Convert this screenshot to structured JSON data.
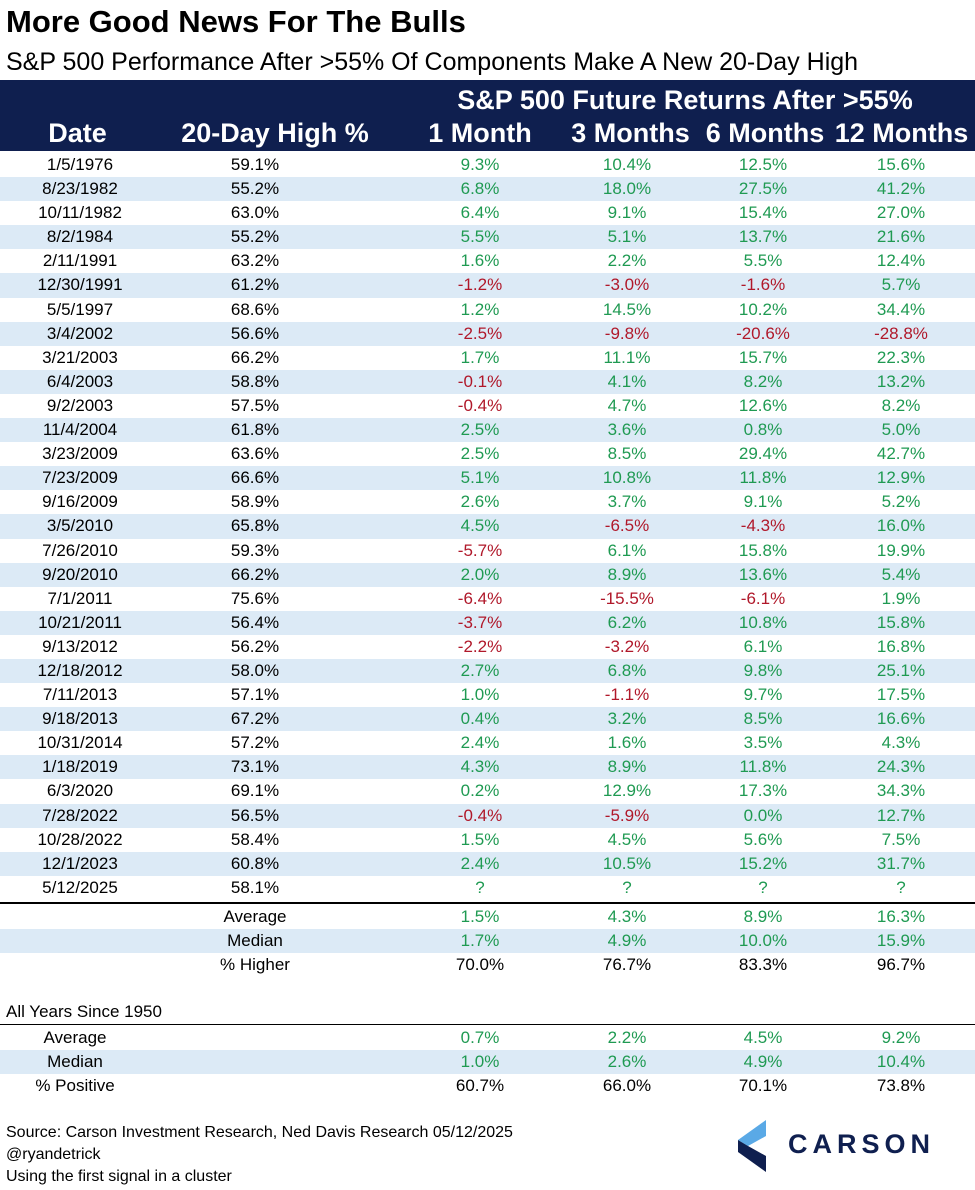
{
  "title": "More Good News For The Bulls",
  "subtitle": "S&P 500 Performance After >55% Of Components Make A New 20-Day High",
  "header": {
    "group_label": "S&P 500 Future Returns After >55%",
    "columns": [
      "Date",
      "20-Day High %",
      "1 Month",
      "3 Months",
      "6 Months",
      "12 Months"
    ]
  },
  "rows": [
    {
      "date": "1/5/1976",
      "pct": "59.1%",
      "m1": "9.3%",
      "m3": "10.4%",
      "m6": "12.5%",
      "m12": "15.6%"
    },
    {
      "date": "8/23/1982",
      "pct": "55.2%",
      "m1": "6.8%",
      "m3": "18.0%",
      "m6": "27.5%",
      "m12": "41.2%"
    },
    {
      "date": "10/11/1982",
      "pct": "63.0%",
      "m1": "6.4%",
      "m3": "9.1%",
      "m6": "15.4%",
      "m12": "27.0%"
    },
    {
      "date": "8/2/1984",
      "pct": "55.2%",
      "m1": "5.5%",
      "m3": "5.1%",
      "m6": "13.7%",
      "m12": "21.6%"
    },
    {
      "date": "2/11/1991",
      "pct": "63.2%",
      "m1": "1.6%",
      "m3": "2.2%",
      "m6": "5.5%",
      "m12": "12.4%"
    },
    {
      "date": "12/30/1991",
      "pct": "61.2%",
      "m1": "-1.2%",
      "m3": "-3.0%",
      "m6": "-1.6%",
      "m12": "5.7%"
    },
    {
      "date": "5/5/1997",
      "pct": "68.6%",
      "m1": "1.2%",
      "m3": "14.5%",
      "m6": "10.2%",
      "m12": "34.4%"
    },
    {
      "date": "3/4/2002",
      "pct": "56.6%",
      "m1": "-2.5%",
      "m3": "-9.8%",
      "m6": "-20.6%",
      "m12": "-28.8%"
    },
    {
      "date": "3/21/2003",
      "pct": "66.2%",
      "m1": "1.7%",
      "m3": "11.1%",
      "m6": "15.7%",
      "m12": "22.3%"
    },
    {
      "date": "6/4/2003",
      "pct": "58.8%",
      "m1": "-0.1%",
      "m3": "4.1%",
      "m6": "8.2%",
      "m12": "13.2%"
    },
    {
      "date": "9/2/2003",
      "pct": "57.5%",
      "m1": "-0.4%",
      "m3": "4.7%",
      "m6": "12.6%",
      "m12": "8.2%"
    },
    {
      "date": "11/4/2004",
      "pct": "61.8%",
      "m1": "2.5%",
      "m3": "3.6%",
      "m6": "0.8%",
      "m12": "5.0%"
    },
    {
      "date": "3/23/2009",
      "pct": "63.6%",
      "m1": "2.5%",
      "m3": "8.5%",
      "m6": "29.4%",
      "m12": "42.7%"
    },
    {
      "date": "7/23/2009",
      "pct": "66.6%",
      "m1": "5.1%",
      "m3": "10.8%",
      "m6": "11.8%",
      "m12": "12.9%"
    },
    {
      "date": "9/16/2009",
      "pct": "58.9%",
      "m1": "2.6%",
      "m3": "3.7%",
      "m6": "9.1%",
      "m12": "5.2%"
    },
    {
      "date": "3/5/2010",
      "pct": "65.8%",
      "m1": "4.5%",
      "m3": "-6.5%",
      "m6": "-4.3%",
      "m12": "16.0%"
    },
    {
      "date": "7/26/2010",
      "pct": "59.3%",
      "m1": "-5.7%",
      "m3": "6.1%",
      "m6": "15.8%",
      "m12": "19.9%"
    },
    {
      "date": "9/20/2010",
      "pct": "66.2%",
      "m1": "2.0%",
      "m3": "8.9%",
      "m6": "13.6%",
      "m12": "5.4%"
    },
    {
      "date": "7/1/2011",
      "pct": "75.6%",
      "m1": "-6.4%",
      "m3": "-15.5%",
      "m6": "-6.1%",
      "m12": "1.9%"
    },
    {
      "date": "10/21/2011",
      "pct": "56.4%",
      "m1": "-3.7%",
      "m3": "6.2%",
      "m6": "10.8%",
      "m12": "15.8%"
    },
    {
      "date": "9/13/2012",
      "pct": "56.2%",
      "m1": "-2.2%",
      "m3": "-3.2%",
      "m6": "6.1%",
      "m12": "16.8%"
    },
    {
      "date": "12/18/2012",
      "pct": "58.0%",
      "m1": "2.7%",
      "m3": "6.8%",
      "m6": "9.8%",
      "m12": "25.1%"
    },
    {
      "date": "7/11/2013",
      "pct": "57.1%",
      "m1": "1.0%",
      "m3": "-1.1%",
      "m6": "9.7%",
      "m12": "17.5%"
    },
    {
      "date": "9/18/2013",
      "pct": "67.2%",
      "m1": "0.4%",
      "m3": "3.2%",
      "m6": "8.5%",
      "m12": "16.6%"
    },
    {
      "date": "10/31/2014",
      "pct": "57.2%",
      "m1": "2.4%",
      "m3": "1.6%",
      "m6": "3.5%",
      "m12": "4.3%"
    },
    {
      "date": "1/18/2019",
      "pct": "73.1%",
      "m1": "4.3%",
      "m3": "8.9%",
      "m6": "11.8%",
      "m12": "24.3%"
    },
    {
      "date": "6/3/2020",
      "pct": "69.1%",
      "m1": "0.2%",
      "m3": "12.9%",
      "m6": "17.3%",
      "m12": "34.3%"
    },
    {
      "date": "7/28/2022",
      "pct": "56.5%",
      "m1": "-0.4%",
      "m3": "-5.9%",
      "m6": "0.0%",
      "m12": "12.7%"
    },
    {
      "date": "10/28/2022",
      "pct": "58.4%",
      "m1": "1.5%",
      "m3": "4.5%",
      "m6": "5.6%",
      "m12": "7.5%"
    },
    {
      "date": "12/1/2023",
      "pct": "60.8%",
      "m1": "2.4%",
      "m3": "10.5%",
      "m6": "15.2%",
      "m12": "31.7%"
    },
    {
      "date": "5/12/2025",
      "pct": "58.1%",
      "m1": "?",
      "m3": "?",
      "m6": "?",
      "m12": "?"
    }
  ],
  "summary": [
    {
      "label": "Average",
      "m1": "1.5%",
      "m3": "4.3%",
      "m6": "8.9%",
      "m12": "16.3%"
    },
    {
      "label": "Median",
      "m1": "1.7%",
      "m3": "4.9%",
      "m6": "10.0%",
      "m12": "15.9%"
    },
    {
      "label": "% Higher",
      "m1": "70.0%",
      "m3": "76.7%",
      "m6": "83.3%",
      "m12": "96.7%"
    }
  ],
  "all_years": {
    "label": "All Years Since 1950",
    "rows": [
      {
        "label": "Average",
        "m1": "0.7%",
        "m3": "2.2%",
        "m6": "4.5%",
        "m12": "9.2%"
      },
      {
        "label": "Median",
        "m1": "1.0%",
        "m3": "2.6%",
        "m6": "4.9%",
        "m12": "10.4%"
      },
      {
        "label": "% Positive",
        "m1": "60.7%",
        "m3": "66.0%",
        "m6": "70.1%",
        "m12": "73.8%"
      }
    ]
  },
  "footer": {
    "source": "Source: Carson Investment Research, Ned Davis Research 05/12/2025",
    "handle": "@ryandetrick",
    "note": "Using the first signal in a cluster"
  },
  "logo": {
    "text": "CARSON",
    "icon": "carson-chevron-logo-icon"
  },
  "colors": {
    "header_bg": "#0f1f4f",
    "row_shade": "#dceaf6",
    "positive": "#1f9a52",
    "negative": "#b0182a"
  }
}
